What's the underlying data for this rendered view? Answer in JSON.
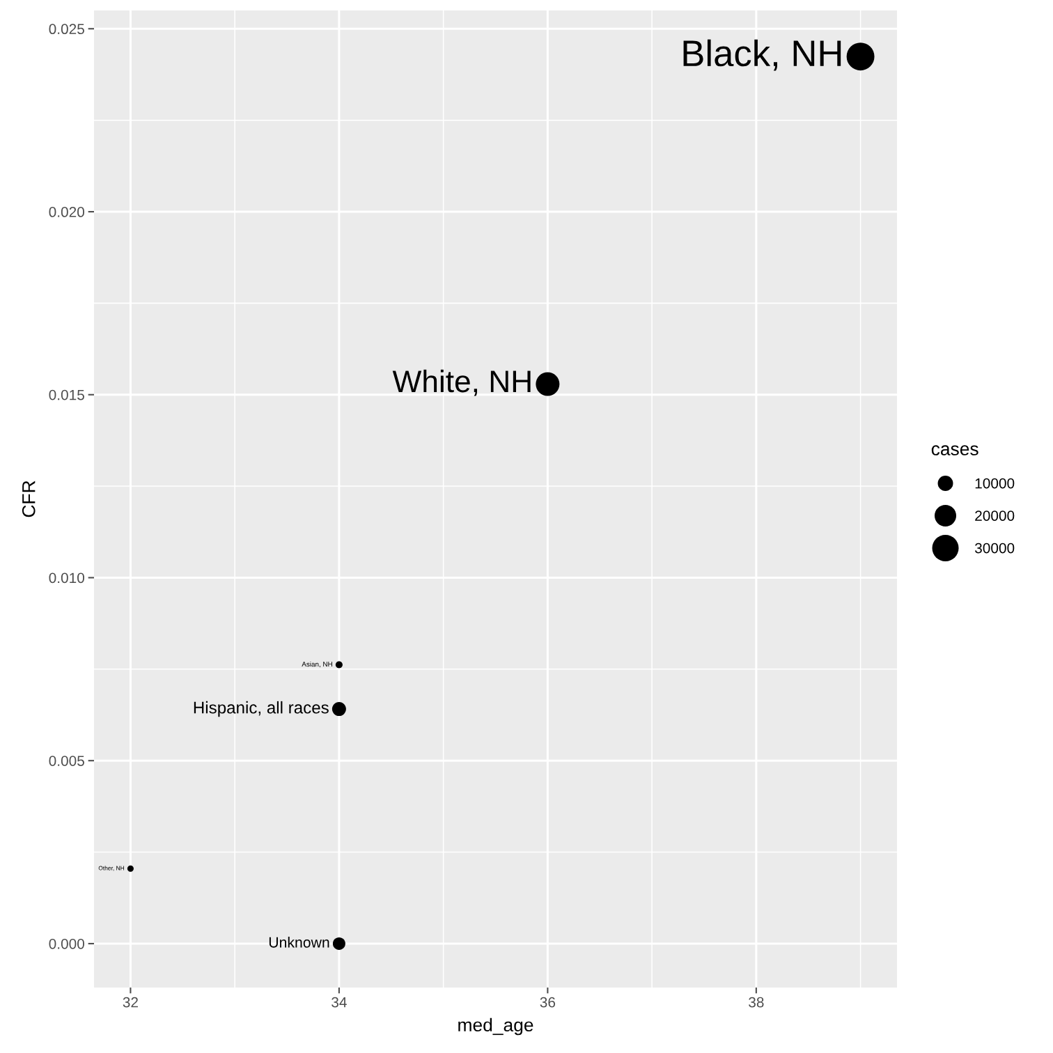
{
  "chart_data": {
    "type": "bubble",
    "xlabel": "med_age",
    "ylabel": "CFR",
    "legend_title": "cases",
    "x": [
      39,
      36,
      34,
      34,
      32,
      34
    ],
    "series": [
      {
        "color": "#000000",
        "values": [
          0.02424,
          0.01529,
          0.00762,
          0.00641,
          0.00205,
          0
        ],
        "sizes": [
          33000,
          24000,
          2100,
          8300,
          1700,
          6700
        ]
      }
    ],
    "size_legend": [
      10000,
      20000,
      30000
    ],
    "xlim": [
      31.65,
      39.35
    ],
    "ylim": [
      -0.0012,
      0.0255
    ],
    "xticks": [
      32,
      34,
      36,
      38
    ],
    "yticks": [
      {
        "value": 0,
        "label": "0.000"
      },
      {
        "value": 0.005,
        "label": "0.005"
      },
      {
        "value": 0.01,
        "label": "0.010"
      },
      {
        "value": 0.015,
        "label": "0.015"
      },
      {
        "value": 0.02,
        "label": "0.020"
      },
      {
        "value": 0.025,
        "label": "0.025"
      }
    ],
    "grid": true,
    "annotations": [
      {
        "text": "Black, NH",
        "x": 39,
        "y": 0.02424
      },
      {
        "text": "White, NH",
        "x": 36,
        "y": 0.01529
      },
      {
        "text": "Asian, NH",
        "x": 34,
        "y": 0.00762
      },
      {
        "text": "Hispanic, all races",
        "x": 34,
        "y": 0.00641
      },
      {
        "text": "Other, NH",
        "x": 32,
        "y": 0.00205
      },
      {
        "text": "Unknown",
        "x": 34,
        "y": 0
      }
    ]
  }
}
